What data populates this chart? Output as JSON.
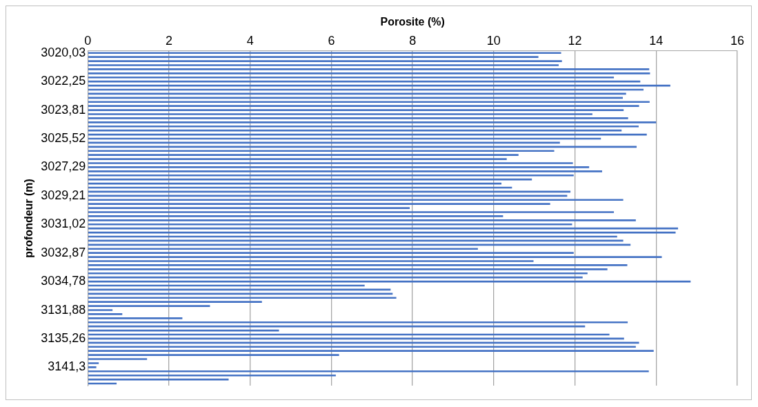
{
  "chart_data": {
    "type": "bar",
    "orientation": "horizontal",
    "xlabel": "Porosite (%)",
    "ylabel": "profondeur (m)",
    "categories": [
      "3020,03",
      null,
      null,
      null,
      null,
      null,
      null,
      "3022,25",
      null,
      null,
      null,
      null,
      null,
      null,
      "3023,81",
      null,
      null,
      null,
      null,
      null,
      null,
      "3025,52",
      null,
      null,
      null,
      null,
      null,
      null,
      "3027,29",
      null,
      null,
      null,
      null,
      null,
      null,
      "3029,21",
      null,
      null,
      null,
      null,
      null,
      null,
      "3031,02",
      null,
      null,
      null,
      null,
      null,
      null,
      "3032,87",
      null,
      null,
      null,
      null,
      null,
      null,
      "3034,78",
      null,
      null,
      null,
      null,
      null,
      null,
      "3131,88",
      null,
      null,
      null,
      null,
      null,
      null,
      "3135,26",
      null,
      null,
      null,
      null,
      null,
      null,
      "3141,3",
      null,
      null,
      null,
      null
    ],
    "values": [
      11.66,
      11.1,
      11.68,
      11.6,
      13.83,
      13.85,
      12.96,
      13.61,
      14.35,
      13.69,
      13.26,
      13.18,
      13.84,
      13.58,
      13.2,
      12.43,
      13.31,
      14.0,
      13.57,
      13.15,
      13.77,
      12.64,
      11.63,
      13.52,
      11.49,
      10.61,
      10.32,
      11.95,
      12.35,
      12.67,
      11.97,
      10.94,
      10.19,
      10.45,
      11.89,
      11.81,
      13.19,
      11.39,
      7.93,
      12.96,
      10.23,
      13.5,
      11.93,
      14.54,
      14.48,
      13.04,
      13.19,
      13.37,
      9.61,
      11.97,
      14.14,
      10.98,
      13.29,
      12.8,
      12.31,
      12.19,
      14.85,
      6.82,
      7.46,
      7.51,
      7.6,
      4.29,
      3.01,
      0.61,
      0.85,
      2.33,
      13.3,
      12.25,
      4.71,
      12.85,
      13.21,
      13.58,
      13.5,
      13.94,
      6.19,
      1.46,
      0.27,
      0.21,
      13.82,
      6.11,
      3.47,
      0.71
    ],
    "color": "#4472c4",
    "xlim": [
      0,
      16
    ],
    "xticks": [
      0,
      2,
      4,
      6,
      8,
      10,
      12,
      14,
      16
    ],
    "grid": "x"
  }
}
